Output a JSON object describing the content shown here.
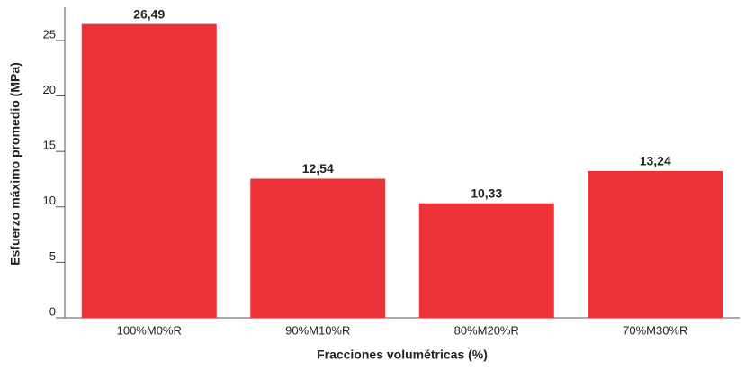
{
  "chart_data": {
    "type": "bar",
    "xlabel": "Fracciones volumétricas (%)",
    "ylabel": "Esfuerzo máximo promedio (MPa)",
    "categories": [
      "100%M0%R",
      "90%M10%R",
      "80%M20%R",
      "70%M30%R"
    ],
    "values": [
      26.49,
      12.54,
      10.33,
      13.24
    ],
    "value_labels": [
      "26,49",
      "12,54",
      "10,33",
      "13,24"
    ],
    "color": "#ee3338",
    "ylim": [
      0,
      28
    ],
    "yticks": [
      0,
      5,
      10,
      15,
      20,
      25
    ],
    "grid": false
  }
}
